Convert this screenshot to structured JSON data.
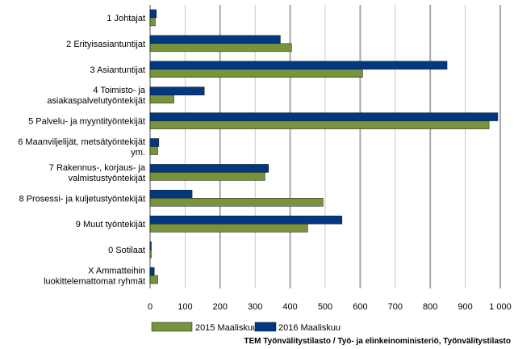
{
  "chart_data": {
    "type": "bar",
    "orientation": "horizontal",
    "categories": [
      [
        "1 Johtajat"
      ],
      [
        "2 Erityisasiantuntijat"
      ],
      [
        "3 Asiantuntijat"
      ],
      [
        "4 Toimisto- ja",
        "asiakaspalvelutyöntekijät"
      ],
      [
        "5 Palvelu- ja myyntityöntekijät"
      ],
      [
        "6 Maanviljelijät, metsätyöntekijät",
        "ym."
      ],
      [
        "7 Rakennus-, korjaus- ja",
        "valmistustyöntekijät"
      ],
      [
        "8 Prosessi- ja kuljetustyöntekijät"
      ],
      [
        "9 Muut työntekijät"
      ],
      [
        "0 Sotilaat"
      ],
      [
        "X Ammatteihin",
        "luokittelemattomat ryhmät"
      ]
    ],
    "series": [
      {
        "name": "2016 Maaliskuu",
        "color": "#003882",
        "values": [
          18,
          372,
          848,
          155,
          993,
          25,
          338,
          120,
          548,
          3,
          12
        ]
      },
      {
        "name": "2015 Maaliskuu",
        "color": "#77933c",
        "values": [
          15,
          404,
          607,
          68,
          968,
          22,
          328,
          494,
          450,
          2,
          22
        ]
      }
    ],
    "xlim": [
      0,
      1000
    ],
    "xticks": [
      0,
      100,
      200,
      300,
      400,
      500,
      600,
      700,
      800,
      900,
      1000
    ],
    "xtick_labels": [
      "0",
      "100",
      "200",
      "300",
      "400",
      "500",
      "600",
      "700",
      "800",
      "900",
      "1 000"
    ],
    "grid": true,
    "legend_position": "bottom",
    "legend_order": [
      "2015 Maaliskuu",
      "2016 Maaliskuu"
    ],
    "source": "TEM Työnvälitystilasto / Työ- ja elinkeinoministeriö, Työnvälitystilasto"
  }
}
